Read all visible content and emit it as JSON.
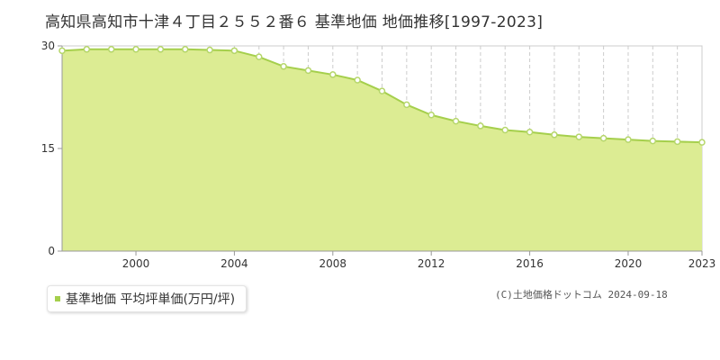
{
  "title": "高知県高知市十津４丁目２５５２番６ 基準地価 地価推移[1997-2023]",
  "legend_label": "基準地価 平均坪単価(万円/坪)",
  "credit": "(C)土地価格ドットコム 2024-09-18",
  "colors": {
    "area_fill": "#dcec93",
    "line": "#a5cf4c",
    "marker_stroke": "#b5d66a",
    "grid": "#cccccc",
    "axis": "#999999",
    "legend_swatch": "#a5cf4c"
  },
  "chart_data": {
    "type": "area",
    "title": "高知県高知市十津４丁目２５５２番６ 基準地価 地価推移[1997-2023]",
    "xlabel": "",
    "ylabel": "",
    "xlim": [
      1997,
      2023
    ],
    "ylim": [
      0,
      30
    ],
    "yticks": [
      0,
      15,
      30
    ],
    "xticks": [
      2000,
      2004,
      2008,
      2012,
      2016,
      2020,
      2023
    ],
    "grid": true,
    "legend_position": "bottom-left",
    "series": [
      {
        "name": "基準地価 平均坪単価(万円/坪)",
        "x": [
          1997,
          1998,
          1999,
          2000,
          2001,
          2002,
          2003,
          2004,
          2005,
          2006,
          2007,
          2008,
          2009,
          2010,
          2011,
          2012,
          2013,
          2014,
          2015,
          2016,
          2017,
          2018,
          2019,
          2020,
          2021,
          2022,
          2023
        ],
        "values": [
          29.3,
          29.5,
          29.5,
          29.5,
          29.5,
          29.5,
          29.4,
          29.3,
          28.4,
          27.0,
          26.4,
          25.8,
          25.0,
          23.4,
          21.4,
          19.9,
          19.0,
          18.3,
          17.7,
          17.4,
          17.0,
          16.7,
          16.5,
          16.3,
          16.1,
          16.0,
          15.9
        ]
      }
    ]
  }
}
